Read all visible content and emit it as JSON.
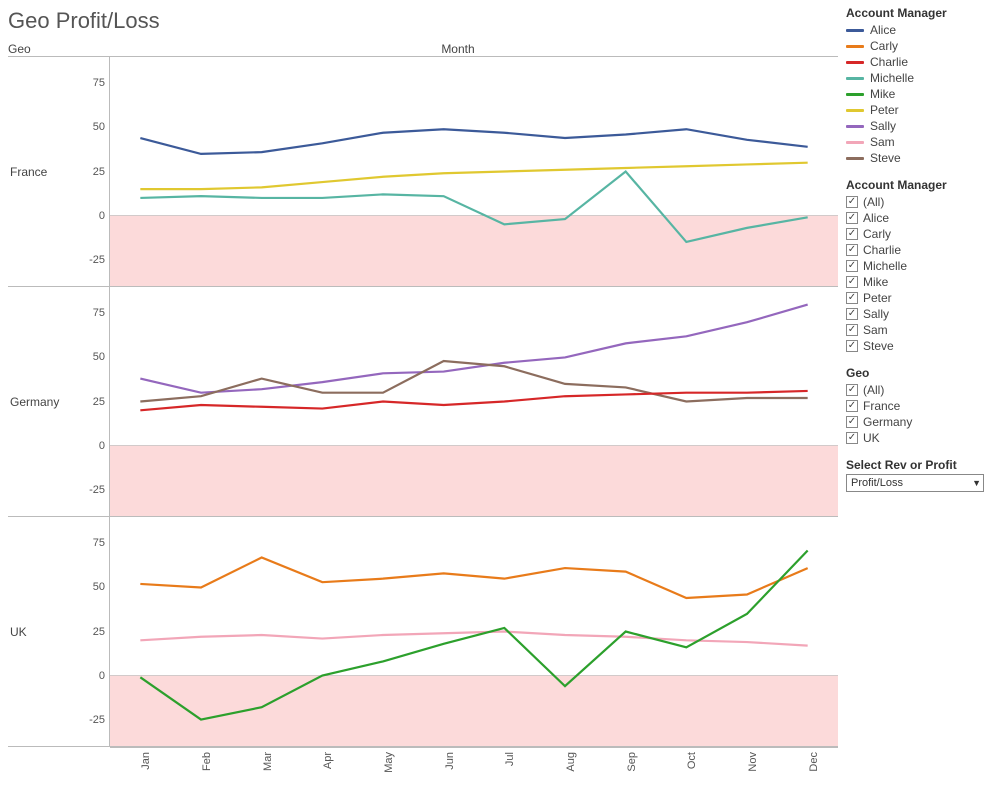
{
  "title": "Geo Profit/Loss",
  "axis_labels": {
    "geo": "Geo",
    "month": "Month"
  },
  "months": [
    "Jan",
    "Feb",
    "Mar",
    "Apr",
    "May",
    "Jun",
    "Jul",
    "Aug",
    "Sep",
    "Oct",
    "Nov",
    "Dec"
  ],
  "y": {
    "min": -40,
    "max": 90,
    "ticks": [
      -25,
      0,
      25,
      50,
      75
    ]
  },
  "background_color": "#ffffff",
  "negative_band_color": "#fcdada",
  "zero_line_color": "#888888",
  "grid_color": "#dddddd",
  "line_width": 2.2,
  "managers": {
    "Alice": "#3c5a99",
    "Carly": "#e87b1a",
    "Charlie": "#d62728",
    "Michelle": "#57b5a3",
    "Mike": "#2ca02c",
    "Peter": "#e0c830",
    "Sally": "#9467bd",
    "Sam": "#f2a6b8",
    "Steve": "#8c6d5e"
  },
  "panels": [
    {
      "geo": "France",
      "series": [
        {
          "manager": "Alice",
          "values": [
            44,
            35,
            36,
            41,
            47,
            49,
            47,
            44,
            46,
            49,
            43,
            39
          ]
        },
        {
          "manager": "Peter",
          "values": [
            15,
            15,
            16,
            19,
            22,
            24,
            25,
            26,
            27,
            28,
            29,
            30
          ]
        },
        {
          "manager": "Michelle",
          "values": [
            10,
            11,
            10,
            10,
            12,
            11,
            -5,
            -2,
            25,
            -15,
            -7,
            -1
          ]
        }
      ]
    },
    {
      "geo": "Germany",
      "series": [
        {
          "manager": "Sally",
          "values": [
            38,
            30,
            32,
            36,
            41,
            42,
            47,
            50,
            58,
            62,
            70,
            80
          ]
        },
        {
          "manager": "Steve",
          "values": [
            25,
            28,
            38,
            30,
            30,
            48,
            45,
            35,
            33,
            25,
            27,
            27
          ]
        },
        {
          "manager": "Charlie",
          "values": [
            20,
            23,
            22,
            21,
            25,
            23,
            25,
            28,
            29,
            30,
            30,
            31
          ]
        }
      ]
    },
    {
      "geo": "UK",
      "series": [
        {
          "manager": "Carly",
          "values": [
            52,
            50,
            67,
            53,
            55,
            58,
            55,
            61,
            59,
            44,
            46,
            61
          ]
        },
        {
          "manager": "Sam",
          "values": [
            20,
            22,
            23,
            21,
            23,
            24,
            25,
            23,
            22,
            20,
            19,
            17
          ]
        },
        {
          "manager": "Mike",
          "values": [
            -1,
            -25,
            -18,
            0,
            8,
            18,
            27,
            -6,
            25,
            16,
            35,
            71
          ]
        }
      ]
    }
  ],
  "legend_title": "Account Manager",
  "filter_manager": {
    "title": "Account Manager",
    "items": [
      "(All)",
      "Alice",
      "Carly",
      "Charlie",
      "Michelle",
      "Mike",
      "Peter",
      "Sally",
      "Sam",
      "Steve"
    ]
  },
  "filter_geo": {
    "title": "Geo",
    "items": [
      "(All)",
      "France",
      "Germany",
      "UK"
    ]
  },
  "param": {
    "title": "Select Rev or Profit",
    "value": "Profit/Loss"
  }
}
